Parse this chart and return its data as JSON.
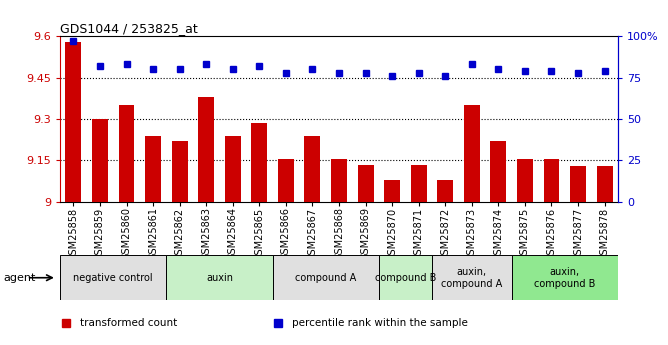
{
  "title": "GDS1044 / 253825_at",
  "categories": [
    "GSM25858",
    "GSM25859",
    "GSM25860",
    "GSM25861",
    "GSM25862",
    "GSM25863",
    "GSM25864",
    "GSM25865",
    "GSM25866",
    "GSM25867",
    "GSM25868",
    "GSM25869",
    "GSM25870",
    "GSM25871",
    "GSM25872",
    "GSM25873",
    "GSM25874",
    "GSM25875",
    "GSM25876",
    "GSM25877",
    "GSM25878"
  ],
  "bar_values": [
    9.58,
    9.3,
    9.35,
    9.24,
    9.22,
    9.38,
    9.24,
    9.285,
    9.155,
    9.24,
    9.155,
    9.135,
    9.08,
    9.135,
    9.08,
    9.35,
    9.22,
    9.155,
    9.155,
    9.13,
    9.13
  ],
  "percentile_values": [
    97,
    82,
    83,
    80,
    80,
    83,
    80,
    82,
    78,
    80,
    78,
    78,
    76,
    78,
    76,
    83,
    80,
    79,
    79,
    78,
    79
  ],
  "bar_color": "#cc0000",
  "percentile_color": "#0000cc",
  "ylim_left": [
    9.0,
    9.6
  ],
  "ylim_right": [
    0,
    100
  ],
  "yticks_left": [
    9.0,
    9.15,
    9.3,
    9.45,
    9.6
  ],
  "ytick_labels_left": [
    "9",
    "9.15",
    "9.3",
    "9.45",
    "9.6"
  ],
  "yticks_right": [
    0,
    25,
    50,
    75,
    100
  ],
  "ytick_labels_right": [
    "0",
    "25",
    "50",
    "75",
    "100%"
  ],
  "hlines": [
    9.15,
    9.3,
    9.45
  ],
  "agent_groups": [
    {
      "label": "negative control",
      "start": 0,
      "end": 4,
      "color": "#e0e0e0"
    },
    {
      "label": "auxin",
      "start": 4,
      "end": 8,
      "color": "#c8f0c8"
    },
    {
      "label": "compound A",
      "start": 8,
      "end": 12,
      "color": "#e0e0e0"
    },
    {
      "label": "compound B",
      "start": 12,
      "end": 14,
      "color": "#c8f0c8"
    },
    {
      "label": "auxin,\ncompound A",
      "start": 14,
      "end": 17,
      "color": "#e0e0e0"
    },
    {
      "label": "auxin,\ncompound B",
      "start": 17,
      "end": 21,
      "color": "#90e890"
    }
  ],
  "legend_items": [
    {
      "label": "transformed count",
      "color": "#cc0000"
    },
    {
      "label": "percentile rank within the sample",
      "color": "#0000cc"
    }
  ],
  "agent_label": "agent",
  "bar_width": 0.6
}
